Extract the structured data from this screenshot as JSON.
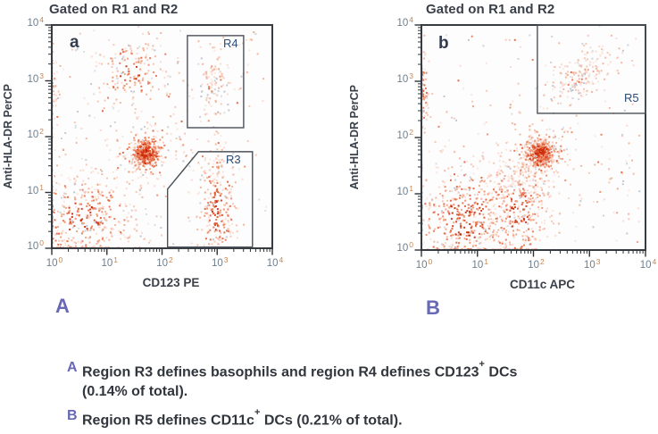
{
  "figure": {
    "panels": [
      {
        "title": "Gated on R1 and R2",
        "corner_label": "a",
        "panel_letter": "A",
        "xlabel": "CD123 PE",
        "ylabel": "Anti-HLA-DR PerCP"
      },
      {
        "title": "Gated on R1 and R2",
        "corner_label": "b",
        "panel_letter": "B",
        "xlabel": "CD11c APC",
        "ylabel": "Anti-HLA-DR PerCP"
      }
    ],
    "caption": {
      "items": [
        {
          "letter": "A",
          "text1": "Region R3 defines basophils and region R4 defines CD123",
          "sup": "+",
          "text2": " DCs",
          "line2": "(0.14% of total)."
        },
        {
          "letter": "B",
          "text1": "Region R5 defines CD11c",
          "sup": "+",
          "text2": " DCs (0.21% of total)."
        }
      ]
    },
    "colors": {
      "accent_purple": "#6769b5",
      "gate_label_blue": "#2b4d79",
      "axis_text": "#3a4049",
      "tick_base": "#6e7e8e",
      "tick_exponent": "#c4854e",
      "gate_stroke": "#4b5158",
      "plot_border": "#373c42",
      "dot_strong_red": "#c9280a",
      "dot_mid_red": "#ee8a63",
      "dot_pale_pink": "#f6c2b0",
      "dot_gray": "#c6ced7"
    }
  },
  "chart_data": [
    {
      "type": "scatter",
      "panel": "a",
      "title": "Gated on R1 and R2",
      "xlabel": "CD123 PE",
      "ylabel": "Anti-HLA-DR PerCP",
      "xscale": "log",
      "yscale": "log",
      "xlim": [
        1,
        10000
      ],
      "ylim": [
        1,
        10000
      ],
      "axis": {
        "base": "10",
        "exponents": [
          0,
          1,
          2,
          3,
          4
        ]
      },
      "units": "log10 decades",
      "gates": [
        {
          "name": "R4",
          "shape": "rect",
          "x": [
            2.46,
            3.48
          ],
          "y": [
            2.16,
            3.81
          ]
        },
        {
          "name": "R3",
          "shape": "polygon",
          "points": [
            [
              2.66,
              1.73
            ],
            [
              3.64,
              1.73
            ],
            [
              3.64,
              0.02
            ],
            [
              2.1,
              0.02
            ],
            [
              2.1,
              1.06
            ]
          ]
        }
      ],
      "clusters": [
        {
          "name": "lymphocytes-low",
          "cx": 0.55,
          "cy": 0.5,
          "sx": 0.5,
          "sy": 0.45,
          "n": 420,
          "density": "medium"
        },
        {
          "name": "monocytes-core",
          "cx": 1.7,
          "cy": 1.7,
          "sx": 0.12,
          "sy": 0.12,
          "n": 300,
          "density": "dense"
        },
        {
          "name": "monocytes-halo",
          "cx": 1.7,
          "cy": 1.7,
          "sx": 0.3,
          "sy": 0.28,
          "n": 160,
          "density": "medium"
        },
        {
          "name": "hladr-high-diffuse",
          "cx": 1.45,
          "cy": 3.15,
          "sx": 0.33,
          "sy": 0.28,
          "n": 160,
          "density": "medium"
        },
        {
          "name": "basophils-R3",
          "cx": 3.0,
          "cy": 0.7,
          "sx": 0.17,
          "sy": 0.6,
          "n": 300,
          "density": "medium"
        },
        {
          "name": "cd123-dcs-R4",
          "cx": 2.95,
          "cy": 3.0,
          "sx": 0.13,
          "sy": 0.3,
          "n": 90,
          "density": "sparse"
        },
        {
          "name": "left-edge-smear",
          "cx": 0.03,
          "cy": 2.75,
          "sx": 0.05,
          "sy": 0.4,
          "n": 45,
          "density": "sparse"
        },
        {
          "name": "background",
          "type": "uniform",
          "x0": 0.05,
          "x1": 3.9,
          "y0": 0.05,
          "y1": 3.9,
          "n": 230
        }
      ]
    },
    {
      "type": "scatter",
      "panel": "b",
      "title": "Gated on R1 and R2",
      "xlabel": "CD11c APC",
      "ylabel": "Anti-HLA-DR PerCP",
      "xscale": "log",
      "yscale": "log",
      "xlim": [
        1,
        10000
      ],
      "ylim": [
        1,
        10000
      ],
      "axis": {
        "base": "10",
        "exponents": [
          0,
          1,
          2,
          3,
          4
        ]
      },
      "units": "log10 decades",
      "gates": [
        {
          "name": "R5",
          "shape": "rect",
          "x": [
            2.07,
            4.0
          ],
          "y": [
            2.43,
            4.0
          ]
        }
      ],
      "clusters": [
        {
          "name": "lymphocytes-low",
          "cx": 0.8,
          "cy": 0.55,
          "sx": 0.55,
          "sy": 0.5,
          "n": 520,
          "density": "medium"
        },
        {
          "name": "mid-column",
          "cx": 1.75,
          "cy": 0.7,
          "sx": 0.28,
          "sy": 0.5,
          "n": 260,
          "density": "medium"
        },
        {
          "name": "monocytes-core",
          "cx": 2.12,
          "cy": 1.73,
          "sx": 0.12,
          "sy": 0.12,
          "n": 320,
          "density": "dense"
        },
        {
          "name": "monocytes-halo",
          "cx": 2.1,
          "cy": 1.7,
          "sx": 0.3,
          "sy": 0.28,
          "n": 160,
          "density": "medium"
        },
        {
          "name": "cd11c-dcs-R5",
          "cx": 2.85,
          "cy": 3.1,
          "sx": 0.33,
          "sy": 0.27,
          "corr": 0.6,
          "n": 180,
          "density": "sparse"
        },
        {
          "name": "left-edge-smear",
          "cx": 0.04,
          "cy": 2.85,
          "sx": 0.05,
          "sy": 0.35,
          "n": 60,
          "density": "medium"
        },
        {
          "name": "trail",
          "cx": 1.95,
          "cy": 1.15,
          "sx": 0.25,
          "sy": 0.3,
          "n": 90,
          "density": "sparse"
        },
        {
          "name": "background",
          "type": "uniform",
          "x0": 0.05,
          "x1": 3.9,
          "y0": 0.05,
          "y1": 3.9,
          "n": 230
        }
      ]
    }
  ]
}
